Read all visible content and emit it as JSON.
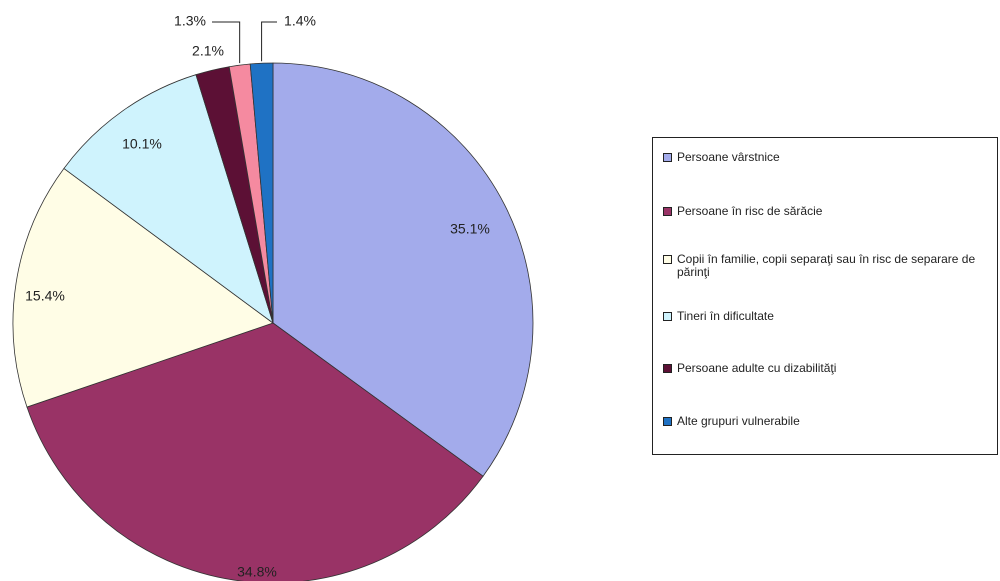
{
  "chart_data": {
    "type": "pie",
    "categories": [
      "Persoane vârstnice",
      "Persoane în risc de sărăcie",
      "Copii în familie, copii separaţi sau în risc de separare de părinţi",
      "Tineri în dificultate",
      "Persoane adulte cu dizabilităţi",
      null,
      "Alte grupuri vulnerabile"
    ],
    "values": [
      35.1,
      34.8,
      15.4,
      10.1,
      2.1,
      1.3,
      1.4
    ],
    "value_labels": [
      "35.1%",
      "34.8%",
      "15.4%",
      "10.1%",
      "2.1%",
      "1.3%",
      "1.4%"
    ],
    "colors": [
      "#a3abeb",
      "#993366",
      "#fffde6",
      "#cff3fd",
      "#5c1035",
      "#f58aa0",
      "#1f72c4"
    ],
    "legend": "right"
  }
}
